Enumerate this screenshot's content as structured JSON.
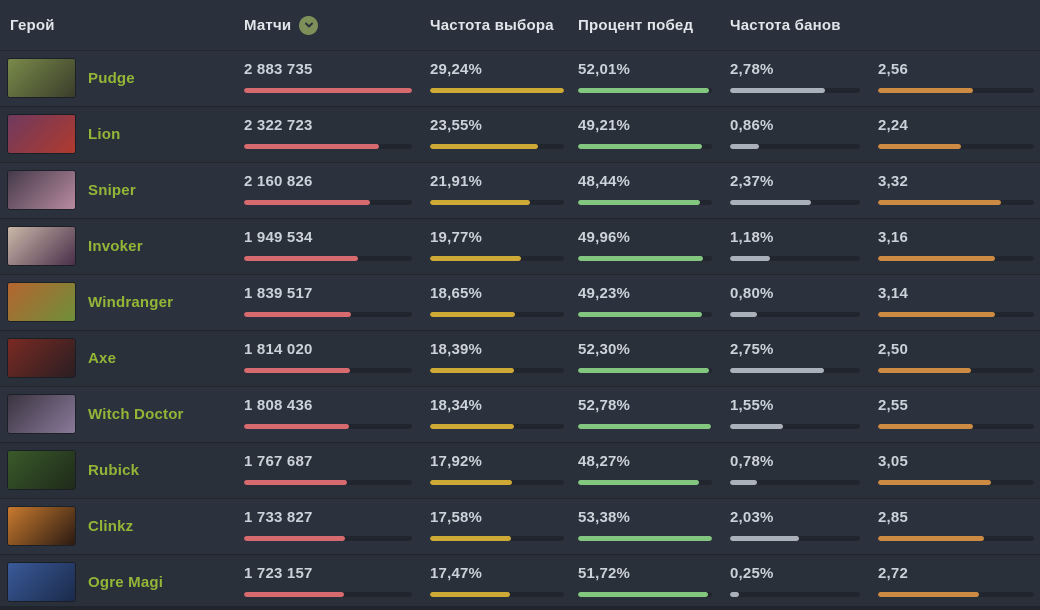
{
  "table": {
    "columns": [
      {
        "key": "hero",
        "label": "Герой"
      },
      {
        "key": "matches",
        "label": "Матчи",
        "sort_icon": "chevron-down-in-circle",
        "sort_icon_color": "#7d9059",
        "bar_color": "#d76a6e",
        "scale_max": 2883735
      },
      {
        "key": "pick_rate",
        "label": "Частота выбора",
        "bar_color": "#cfa935",
        "scale_max": 29.24
      },
      {
        "key": "win_rate",
        "label": "Процент побед",
        "bar_color": "#83c67f",
        "scale_max": 53.38
      },
      {
        "key": "ban_rate",
        "label": "Частота банов",
        "bar_color": "#aab1ba",
        "scale_max": 3.8
      },
      {
        "key": "extra",
        "label": "",
        "bar_color": "#cc8a42",
        "scale_max": 4.2
      }
    ],
    "rows": [
      {
        "hero": "Pudge",
        "matches": "2 883 735",
        "matches_value": 2883735,
        "pick_rate": "29,24%",
        "pick_value": 29.24,
        "win_rate": "52,01%",
        "win_value": 52.01,
        "ban_rate": "2,78%",
        "ban_value": 2.78,
        "extra": "2,56",
        "extra_value": 2.56,
        "portrait_colors": [
          "#7a8a4a",
          "#3a3d2a"
        ]
      },
      {
        "hero": "Lion",
        "matches": "2 322 723",
        "matches_value": 2322723,
        "pick_rate": "23,55%",
        "pick_value": 23.55,
        "win_rate": "49,21%",
        "win_value": 49.21,
        "ban_rate": "0,86%",
        "ban_value": 0.86,
        "extra": "2,24",
        "extra_value": 2.24,
        "portrait_colors": [
          "#6e3a5e",
          "#b03a2e"
        ]
      },
      {
        "hero": "Sniper",
        "matches": "2 160 826",
        "matches_value": 2160826,
        "pick_rate": "21,91%",
        "pick_value": 21.91,
        "win_rate": "48,44%",
        "win_value": 48.44,
        "ban_rate": "2,37%",
        "ban_value": 2.37,
        "extra": "3,32",
        "extra_value": 3.32,
        "portrait_colors": [
          "#443a4a",
          "#b98aa0"
        ]
      },
      {
        "hero": "Invoker",
        "matches": "1 949 534",
        "matches_value": 1949534,
        "pick_rate": "19,77%",
        "pick_value": 19.77,
        "win_rate": "49,96%",
        "win_value": 49.96,
        "ban_rate": "1,18%",
        "ban_value": 1.18,
        "extra": "3,16",
        "extra_value": 3.16,
        "portrait_colors": [
          "#c9b8a8",
          "#4a2e4a"
        ]
      },
      {
        "hero": "Windranger",
        "matches": "1 839 517",
        "matches_value": 1839517,
        "pick_rate": "18,65%",
        "pick_value": 18.65,
        "win_rate": "49,23%",
        "win_value": 49.23,
        "ban_rate": "0,80%",
        "ban_value": 0.8,
        "extra": "3,14",
        "extra_value": 3.14,
        "portrait_colors": [
          "#b5652f",
          "#6e8f3a"
        ]
      },
      {
        "hero": "Axe",
        "matches": "1 814 020",
        "matches_value": 1814020,
        "pick_rate": "18,39%",
        "pick_value": 18.39,
        "win_rate": "52,30%",
        "win_value": 52.3,
        "ban_rate": "2,75%",
        "ban_value": 2.75,
        "extra": "2,50",
        "extra_value": 2.5,
        "portrait_colors": [
          "#7a2a22",
          "#2a1e22"
        ]
      },
      {
        "hero": "Witch Doctor",
        "matches": "1 808 436",
        "matches_value": 1808436,
        "pick_rate": "18,34%",
        "pick_value": 18.34,
        "win_rate": "52,78%",
        "win_value": 52.78,
        "ban_rate": "1,55%",
        "ban_value": 1.55,
        "extra": "2,55",
        "extra_value": 2.55,
        "portrait_colors": [
          "#3a3440",
          "#8a7a9a"
        ]
      },
      {
        "hero": "Rubick",
        "matches": "1 767 687",
        "matches_value": 1767687,
        "pick_rate": "17,92%",
        "pick_value": 17.92,
        "win_rate": "48,27%",
        "win_value": 48.27,
        "ban_rate": "0,78%",
        "ban_value": 0.78,
        "extra": "3,05",
        "extra_value": 3.05,
        "portrait_colors": [
          "#3a5a2a",
          "#1e2a1a"
        ]
      },
      {
        "hero": "Clinkz",
        "matches": "1 733 827",
        "matches_value": 1733827,
        "pick_rate": "17,58%",
        "pick_value": 17.58,
        "win_rate": "53,38%",
        "win_value": 53.38,
        "ban_rate": "2,03%",
        "ban_value": 2.03,
        "extra": "2,85",
        "extra_value": 2.85,
        "portrait_colors": [
          "#c87a2e",
          "#2a1a12"
        ]
      },
      {
        "hero": "Ogre Magi",
        "matches": "1 723 157",
        "matches_value": 1723157,
        "pick_rate": "17,47%",
        "pick_value": 17.47,
        "win_rate": "51,72%",
        "win_value": 51.72,
        "ban_rate": "0,25%",
        "ban_value": 0.25,
        "extra": "2,72",
        "extra_value": 2.72,
        "portrait_colors": [
          "#3a5a9a",
          "#1a2a4a"
        ]
      }
    ]
  },
  "colors": {
    "background": "#2b313c",
    "row_alt": "#2a303a",
    "hero_name": "#93b637",
    "value_text": "#ccd2d9",
    "header_text": "#e2e6ea",
    "bar_track": "#21252e"
  }
}
